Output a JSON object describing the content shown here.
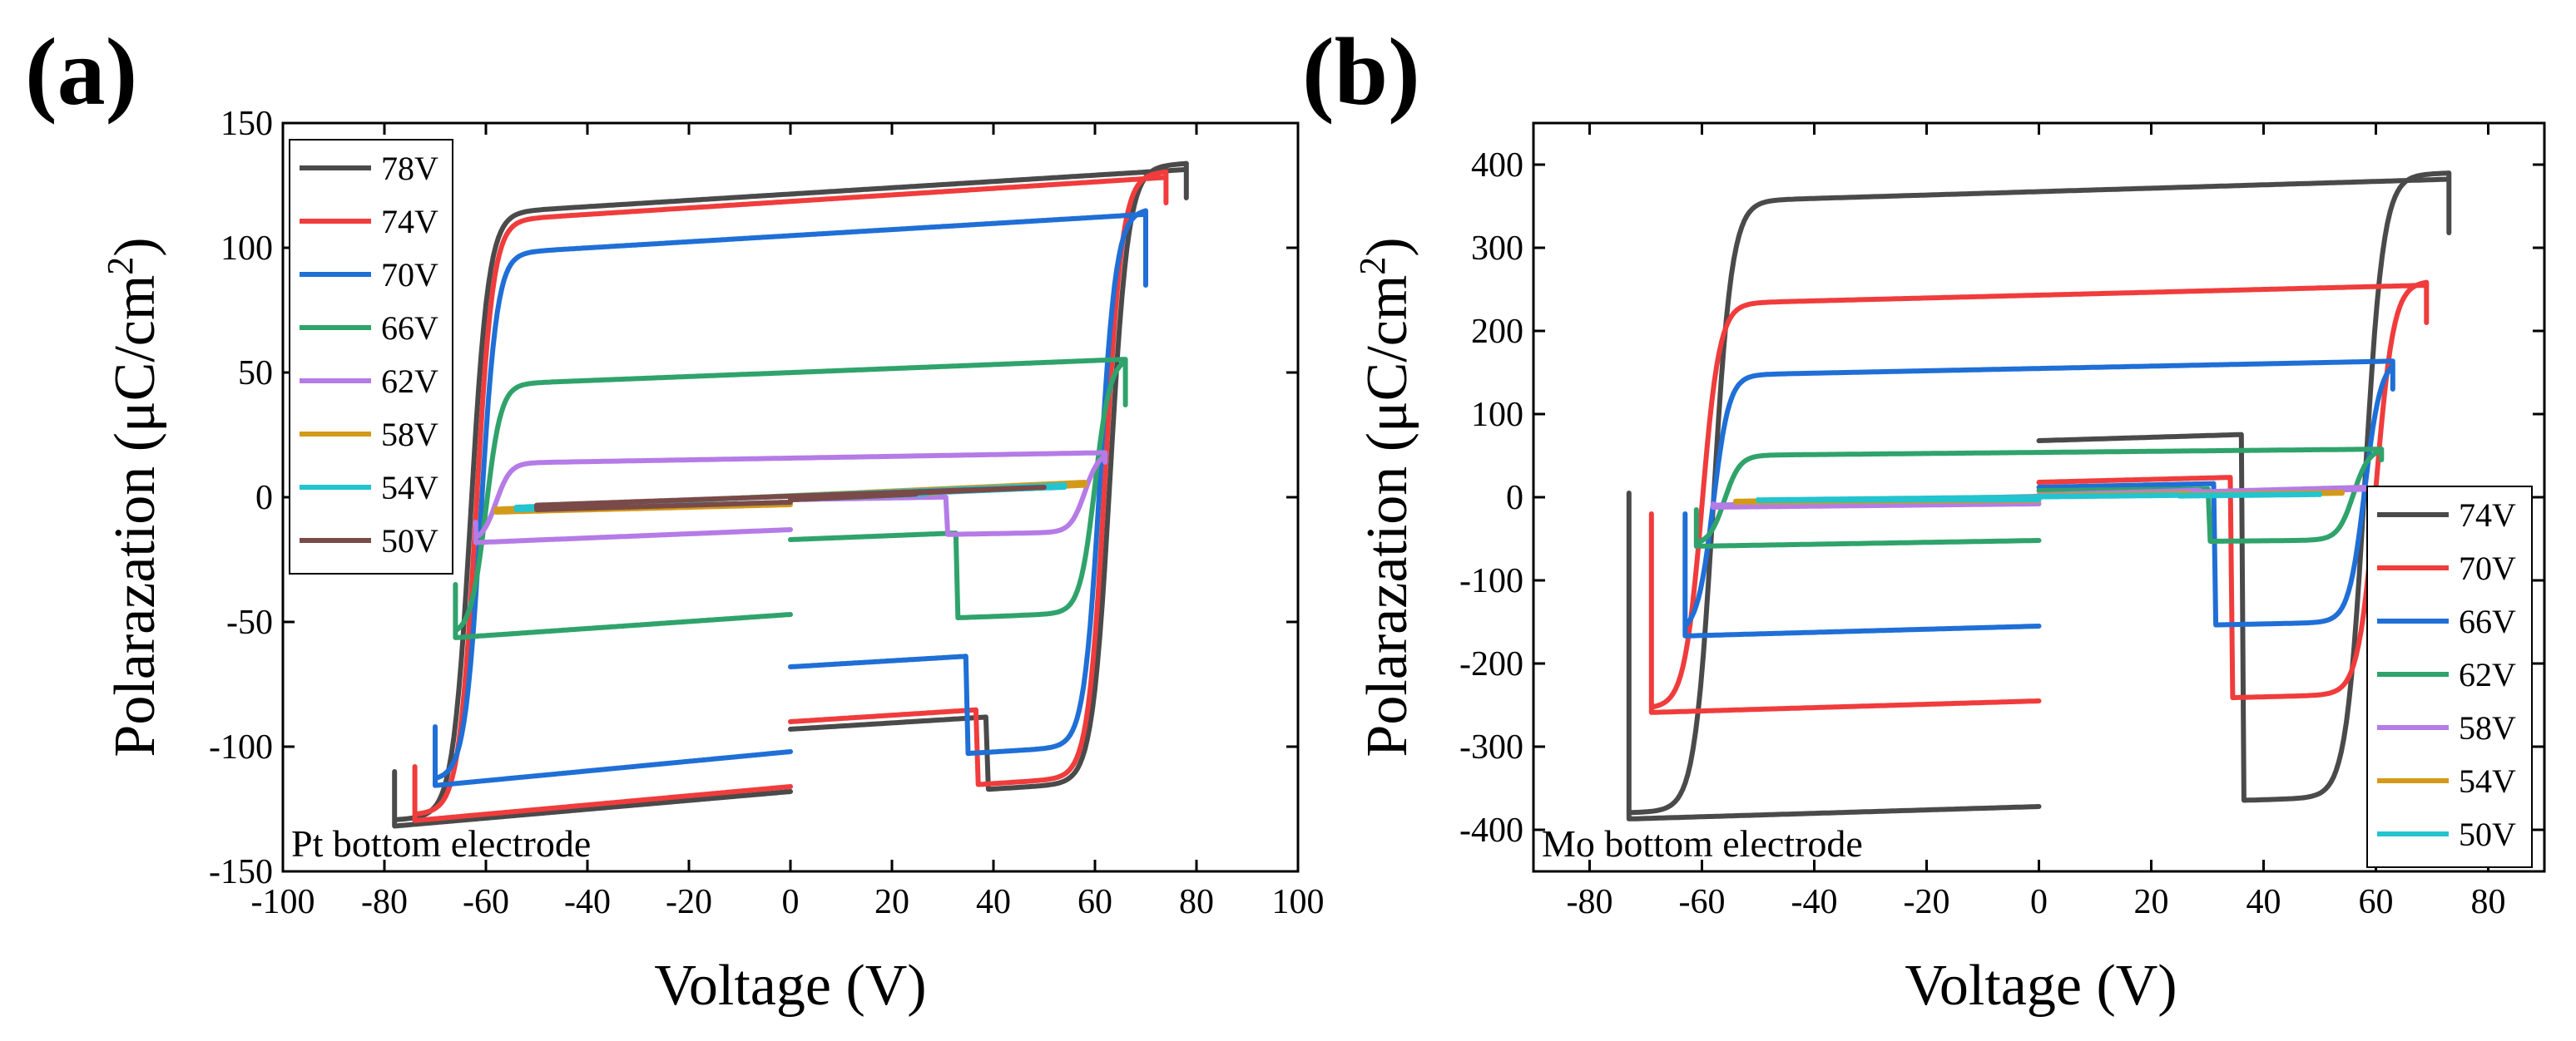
{
  "chart_data": [
    {
      "type": "line",
      "panel_label": "(a)",
      "title": "",
      "xlabel": "Voltage (V)",
      "ylabel_main": "Polarazation (μC/cm",
      "ylabel_sup": "2",
      "ylabel_end": ")",
      "xlim": [
        -100,
        100
      ],
      "ylim": [
        -150,
        150
      ],
      "xticks": [
        "-100",
        "-80",
        "-60",
        "-40",
        "-20",
        "0",
        "20",
        "40",
        "60",
        "80",
        "100"
      ],
      "yticks": [
        "-150",
        "-100",
        "-50",
        "0",
        "50",
        "100",
        "150"
      ],
      "annotation": "Pt bottom electrode",
      "legend_position": "top-left",
      "series": [
        {
          "name": "78V",
          "color": "#4a4a4a",
          "vmax": 78,
          "pmax": 124,
          "pmin": -122,
          "vc": 63,
          "d": 0.5,
          "p_end_bottom": -118,
          "p_end_top": -93,
          "p_tip_pos": 120,
          "p_tip_neg": -110
        },
        {
          "name": "74V",
          "color": "#f03c3c",
          "vmax": 74,
          "pmax": 121,
          "pmin": -120,
          "vc": 62,
          "d": 0.5,
          "p_end_bottom": -116,
          "p_end_top": -90,
          "p_tip_pos": 118,
          "p_tip_neg": -108
        },
        {
          "name": "70V",
          "color": "#1f6fd6",
          "vmax": 70,
          "pmax": 107,
          "pmin": -107,
          "vc": 61,
          "d": 0.5,
          "p_end_bottom": -102,
          "p_end_top": -68,
          "p_tip_pos": 85,
          "p_tip_neg": -92
        },
        {
          "name": "66V",
          "color": "#2fa36b",
          "vmax": 66,
          "pmax": 51,
          "pmin": -51,
          "vc": 60,
          "d": 0.65,
          "p_end_bottom": -47,
          "p_end_top": -17,
          "p_tip_pos": 37,
          "p_tip_neg": -35
        },
        {
          "name": "62V",
          "color": "#b57be6",
          "vmax": 62,
          "pmax": 16,
          "pmin": -16,
          "vc": 58,
          "d": 0.85,
          "p_end_bottom": -13,
          "p_end_top": -1,
          "p_tip_pos": 14,
          "p_tip_neg": -10
        },
        {
          "name": "58V",
          "color": "#d39a1a",
          "vmax": 58,
          "pmax": 6,
          "pmin": -6,
          "vc": 0,
          "d": 1,
          "p_end_bottom": -3,
          "p_end_top": -1,
          "p_tip_pos": 6,
          "p_tip_neg": -5
        },
        {
          "name": "54V",
          "color": "#22c4cf",
          "vmax": 54,
          "pmax": 5,
          "pmin": -5,
          "vc": 0,
          "d": 1,
          "p_end_bottom": -2,
          "p_end_top": -1,
          "p_tip_pos": 5,
          "p_tip_neg": -4
        },
        {
          "name": "50V",
          "color": "#7a4a48",
          "vmax": 50,
          "pmax": 4,
          "pmin": -5,
          "vc": 0,
          "d": 1,
          "p_end_bottom": -2,
          "p_end_top": -1,
          "p_tip_pos": 4,
          "p_tip_neg": -4
        }
      ]
    },
    {
      "type": "line",
      "panel_label": "(b)",
      "title": "",
      "xlabel": "Voltage (V)",
      "ylabel_main": "Polarazation (μC/cm",
      "ylabel_sup": "2",
      "ylabel_end": ")",
      "xlim": [
        -90,
        90
      ],
      "ylim": [
        -450,
        450
      ],
      "xticks": [
        "-80",
        "-60",
        "-40",
        "-20",
        "0",
        "20",
        "40",
        "60",
        "80"
      ],
      "yticks": [
        "-400",
        "-300",
        "-200",
        "-100",
        "0",
        "100",
        "200",
        "300",
        "400"
      ],
      "annotation": "Mo bottom electrode",
      "legend_position": "bottom-right",
      "series": [
        {
          "name": "74V",
          "color": "#4a4a4a",
          "vmax": 73,
          "pmax": 375,
          "pmin": -372,
          "vc": 58,
          "d": 0.25,
          "p_end_bottom": -372,
          "p_end_top": 68,
          "p_tip_pos": 318,
          "p_tip_neg": 5
        },
        {
          "name": "70V",
          "color": "#f03c3c",
          "vmax": 69,
          "pmax": 248,
          "pmin": -247,
          "vc": 60,
          "d": 0.3,
          "p_end_bottom": -245,
          "p_end_top": 18,
          "p_tip_pos": 210,
          "p_tip_neg": -20
        },
        {
          "name": "66V",
          "color": "#1f6fd6",
          "vmax": 63,
          "pmax": 158,
          "pmin": -158,
          "vc": 58,
          "d": 0.35,
          "p_end_bottom": -155,
          "p_end_top": 12,
          "p_tip_pos": 130,
          "p_tip_neg": -20
        },
        {
          "name": "62V",
          "color": "#2fa36b",
          "vmax": 61,
          "pmax": 55,
          "pmin": -55,
          "vc": 56,
          "d": 0.45,
          "p_end_bottom": -52,
          "p_end_top": 8,
          "p_tip_pos": 45,
          "p_tip_neg": -15
        },
        {
          "name": "58V",
          "color": "#b57be6",
          "vmax": 58,
          "pmax": 12,
          "pmin": -12,
          "vc": 0,
          "d": 1,
          "p_end_bottom": -8,
          "p_end_top": 3,
          "p_tip_pos": 10,
          "p_tip_neg": -8
        },
        {
          "name": "54V",
          "color": "#d39a1a",
          "vmax": 54,
          "pmax": 6,
          "pmin": -6,
          "vc": 0,
          "d": 1,
          "p_end_bottom": -4,
          "p_end_top": 2,
          "p_tip_pos": 5,
          "p_tip_neg": -5
        },
        {
          "name": "50V",
          "color": "#22c4cf",
          "vmax": 50,
          "pmax": 4,
          "pmin": -4,
          "vc": 0,
          "d": 1,
          "p_end_bottom": -3,
          "p_end_top": 1,
          "p_tip_pos": 3,
          "p_tip_neg": -3
        }
      ]
    }
  ]
}
